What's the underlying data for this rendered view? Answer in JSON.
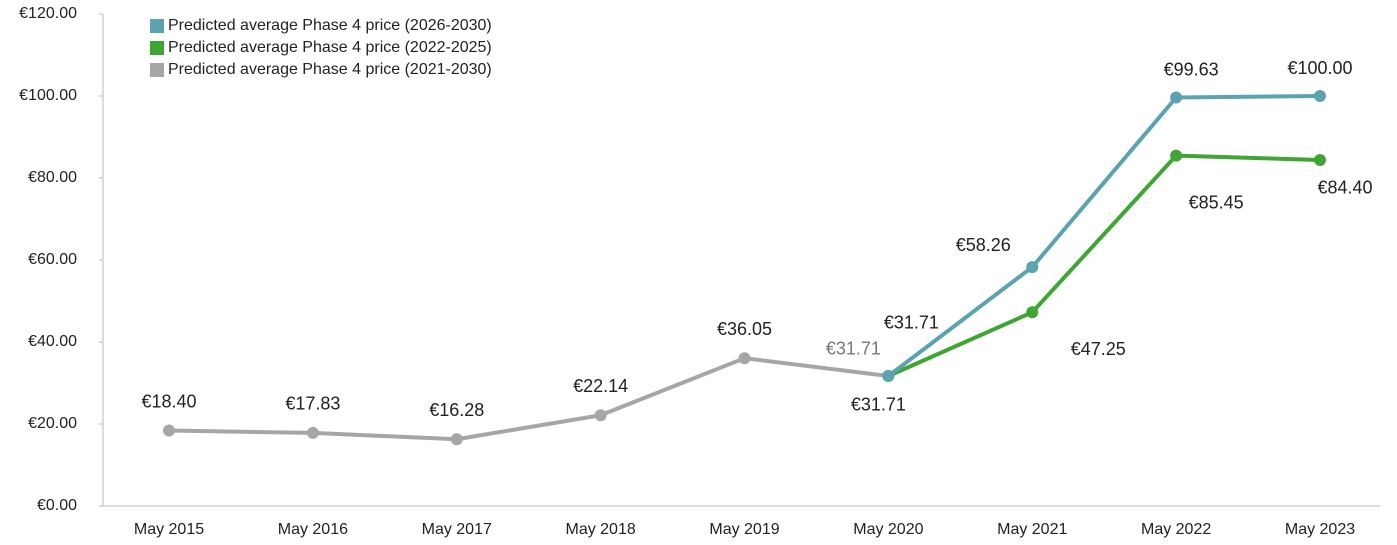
{
  "chart_data": {
    "type": "line",
    "categories": [
      "May 2015",
      "May 2016",
      "May 2017",
      "May 2018",
      "May 2019",
      "May 2020",
      "May 2021",
      "May 2022",
      "May 2023"
    ],
    "series": [
      {
        "name": "Predicted average Phase 4 price (2026-2030)",
        "color": "#5ba3b0",
        "values": [
          null,
          null,
          null,
          null,
          null,
          31.71,
          58.26,
          99.63,
          100.0
        ],
        "value_labels": [
          null,
          null,
          null,
          null,
          null,
          "€31.71",
          "€58.26",
          "€99.63",
          "€100.00"
        ]
      },
      {
        "name": "Predicted average Phase 4 price (2022-2025)",
        "color": "#3fa535",
        "values": [
          null,
          null,
          null,
          null,
          null,
          31.71,
          47.25,
          85.45,
          84.4
        ],
        "value_labels": [
          null,
          null,
          null,
          null,
          null,
          "€31.71",
          "€47.25",
          "€85.45",
          "€84.40"
        ]
      },
      {
        "name": "Predicted average Phase 4 price (2021-2030)",
        "color": "#a6a6a6",
        "values": [
          18.4,
          17.83,
          16.28,
          22.14,
          36.05,
          31.71,
          null,
          null,
          null
        ],
        "value_labels": [
          "€18.40",
          "€17.83",
          "€16.28",
          "€22.14",
          "€36.05",
          "€31.71",
          null,
          null,
          null
        ]
      }
    ],
    "ylim": [
      0,
      120
    ],
    "yticks": [
      {
        "value": 0,
        "label": "€0.00"
      },
      {
        "value": 20,
        "label": "€20.00"
      },
      {
        "value": 40,
        "label": "€40.00"
      },
      {
        "value": 60,
        "label": "€60.00"
      },
      {
        "value": 80,
        "label": "€80.00"
      },
      {
        "value": 100,
        "label": "€100.00"
      },
      {
        "value": 120,
        "label": "€120.00"
      }
    ],
    "legend": "upper left",
    "grid": false
  }
}
